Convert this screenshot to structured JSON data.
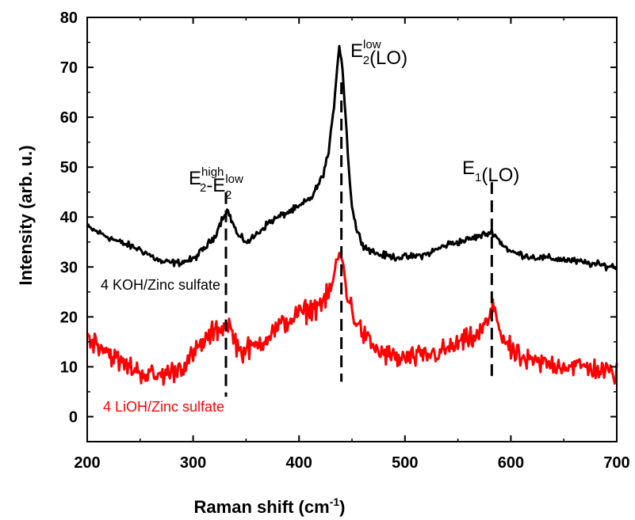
{
  "chart_data": {
    "type": "line",
    "xlabel": {
      "main": "Raman shift (cm",
      "sup": "-1",
      "tail": ")"
    },
    "ylabel": "Intensity (arb. u.)",
    "xlim": [
      200,
      700
    ],
    "ylim": [
      -5,
      80
    ],
    "xticks": [
      200,
      300,
      400,
      500,
      600,
      700
    ],
    "yticks": [
      0,
      10,
      20,
      30,
      40,
      50,
      60,
      70,
      80
    ],
    "grid": false,
    "series": [
      {
        "name": "4 KOH/Zinc sulfate",
        "color": "#000000",
        "noise": 0.7,
        "points": [
          [
            200,
            38
          ],
          [
            215,
            36.5
          ],
          [
            230,
            35
          ],
          [
            250,
            33.5
          ],
          [
            270,
            31
          ],
          [
            285,
            30.8
          ],
          [
            300,
            31.5
          ],
          [
            312,
            34
          ],
          [
            320,
            36
          ],
          [
            327,
            39.5
          ],
          [
            332,
            41.5
          ],
          [
            337,
            39
          ],
          [
            343,
            36
          ],
          [
            352,
            35
          ],
          [
            362,
            37
          ],
          [
            372,
            39
          ],
          [
            385,
            40.5
          ],
          [
            400,
            42
          ],
          [
            412,
            44
          ],
          [
            422,
            48
          ],
          [
            428,
            53
          ],
          [
            432,
            60
          ],
          [
            436,
            70
          ],
          [
            438,
            74.5
          ],
          [
            441,
            70
          ],
          [
            444,
            60
          ],
          [
            447,
            50
          ],
          [
            450,
            42
          ],
          [
            455,
            37
          ],
          [
            462,
            34
          ],
          [
            475,
            32.5
          ],
          [
            490,
            32
          ],
          [
            505,
            32
          ],
          [
            520,
            32.5
          ],
          [
            540,
            34.5
          ],
          [
            560,
            35.5
          ],
          [
            575,
            36.5
          ],
          [
            583,
            37
          ],
          [
            590,
            35
          ],
          [
            600,
            33
          ],
          [
            620,
            32
          ],
          [
            650,
            31.5
          ],
          [
            680,
            30.5
          ],
          [
            700,
            30
          ]
        ]
      },
      {
        "name": "4 LiOH/Zinc sulfate",
        "color": "#ff0000",
        "noise": 2.2,
        "points": [
          [
            200,
            16
          ],
          [
            215,
            14
          ],
          [
            230,
            11
          ],
          [
            250,
            9
          ],
          [
            265,
            8
          ],
          [
            280,
            9
          ],
          [
            295,
            11
          ],
          [
            310,
            15
          ],
          [
            320,
            17
          ],
          [
            328,
            18
          ],
          [
            333,
            19
          ],
          [
            338,
            16
          ],
          [
            345,
            13
          ],
          [
            358,
            14
          ],
          [
            375,
            17
          ],
          [
            395,
            20
          ],
          [
            415,
            22
          ],
          [
            428,
            24
          ],
          [
            434,
            29
          ],
          [
            438,
            33
          ],
          [
            442,
            30
          ],
          [
            446,
            24
          ],
          [
            452,
            20
          ],
          [
            462,
            16
          ],
          [
            475,
            13
          ],
          [
            495,
            11.5
          ],
          [
            515,
            12
          ],
          [
            535,
            13
          ],
          [
            555,
            15
          ],
          [
            568,
            16
          ],
          [
            578,
            19
          ],
          [
            585,
            22
          ],
          [
            590,
            17
          ],
          [
            600,
            13
          ],
          [
            615,
            11
          ],
          [
            640,
            10.5
          ],
          [
            670,
            10
          ],
          [
            700,
            8.5
          ]
        ]
      }
    ],
    "annotations": [
      {
        "base": "E",
        "sub": "2",
        "sup": "high",
        "mid": "-E",
        "sub2": "2",
        "sup2": "low",
        "x": 331
      },
      {
        "base": "E",
        "sub": "2",
        "sup": "low",
        "tail": "(LO)",
        "x": 440
      },
      {
        "base": "E",
        "sub": "1",
        "tail": "(LO)",
        "x": 582
      }
    ]
  }
}
